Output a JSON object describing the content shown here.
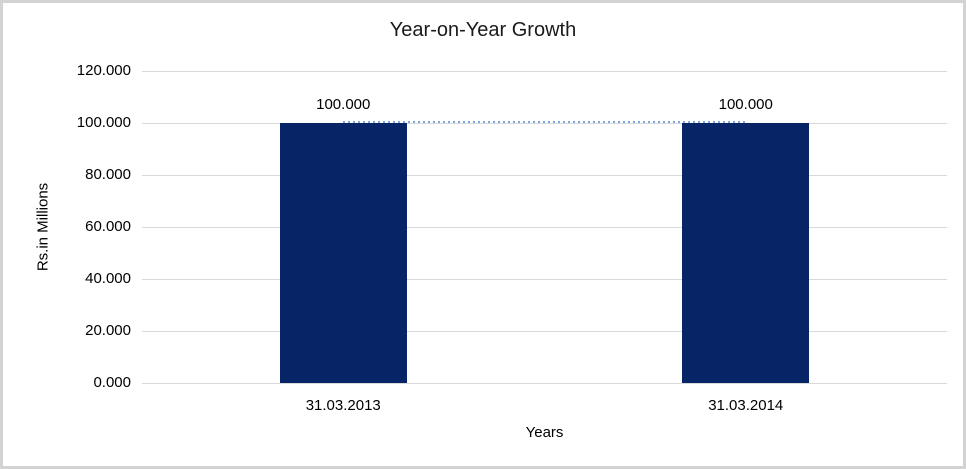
{
  "chart_data": {
    "type": "bar",
    "title": "Year-on-Year Growth",
    "xlabel": "Years",
    "ylabel": "Rs.in Millions",
    "categories": [
      "31.03.2013",
      "31.03.2014"
    ],
    "values": [
      100,
      100
    ],
    "value_labels": [
      "100.000",
      "100.000"
    ],
    "ylim": [
      0,
      120
    ],
    "ytick_interval": 20,
    "ytick_labels": [
      "0.000",
      "20.000",
      "40.000",
      "60.000",
      "80.000",
      "100.000",
      "120.000"
    ],
    "grid": true,
    "legend": "none",
    "connector_line": {
      "style": "dotted",
      "at_value": 100,
      "from_category": 0,
      "to_category": 1
    },
    "colors": {
      "bar": "#072466",
      "connector_dots": "#7EA6D8",
      "gridline": "#D9D9D9",
      "outer_border": "#D3D3D3",
      "text": "#000000"
    }
  }
}
